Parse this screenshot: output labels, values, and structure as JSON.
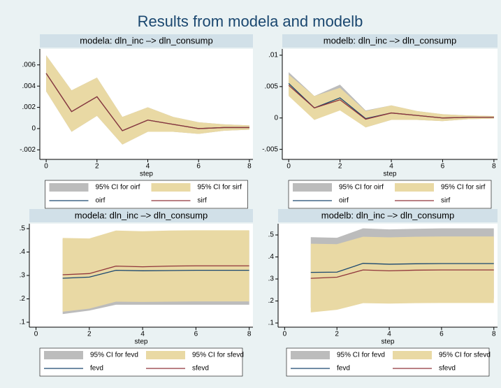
{
  "title": "Results from modela and modelb",
  "chart_data": [
    {
      "type": "line",
      "title": "modela: dln_inc –> dln_consump",
      "xlabel": "step",
      "x": [
        0,
        1,
        2,
        3,
        4,
        5,
        6,
        7,
        8
      ],
      "xlim": [
        -0.25,
        8.14
      ],
      "ylim": [
        -0.0029,
        0.0075
      ],
      "xticks": [
        0,
        2,
        4,
        6,
        8
      ],
      "yticks": [
        {
          "value": -0.002,
          "label": "-.002"
        },
        0,
        {
          "value": 0.002,
          "label": ".002"
        },
        {
          "value": 0.004,
          "label": ".004"
        },
        {
          "value": 0.006,
          "label": ".006"
        }
      ],
      "bands": [
        {
          "name": "95% CI for oirf",
          "color": "#bcbcbc",
          "lower": [
            0.0035,
            -0.0003,
            0.0012,
            -0.0015,
            -0.0003,
            -0.0003,
            -0.0005,
            -0.0002,
            -0.0001
          ],
          "upper": [
            0.0069,
            0.0036,
            0.0048,
            0.0011,
            0.002,
            0.0011,
            0.0006,
            0.0004,
            0.0003
          ]
        },
        {
          "name": "95% CI for sirf",
          "color": "#e9d9a4",
          "lower": [
            0.0035,
            -0.0003,
            0.0012,
            -0.0015,
            -0.0003,
            -0.0003,
            -0.0005,
            -0.0002,
            -0.0001
          ],
          "upper": [
            0.0069,
            0.0036,
            0.0048,
            0.0011,
            0.002,
            0.0011,
            0.0006,
            0.0004,
            0.0003
          ]
        }
      ],
      "series": [
        {
          "name": "oirf",
          "color": "#1a476f",
          "values": [
            0.0052,
            0.0016,
            0.003,
            -0.0002,
            0.0008,
            0.0004,
            0.0,
            0.0001,
            0.0001
          ]
        },
        {
          "name": "sirf",
          "color": "#90353b",
          "values": [
            0.0052,
            0.0016,
            0.003,
            -0.0002,
            0.0008,
            0.0004,
            0.0,
            0.0001,
            0.0001
          ]
        }
      ]
    },
    {
      "type": "line",
      "title": "modelb: dln_inc –> dln_consump",
      "xlabel": "step",
      "x": [
        0,
        1,
        2,
        3,
        4,
        5,
        6,
        7,
        8
      ],
      "xlim": [
        -0.25,
        8.14
      ],
      "ylim": [
        -0.0066,
        0.011
      ],
      "xticks": [
        0,
        2,
        4,
        6,
        8
      ],
      "yticks": [
        {
          "value": -0.005,
          "label": "-.005"
        },
        0,
        {
          "value": 0.005,
          "label": ".005"
        },
        {
          "value": 0.01,
          "label": ".01"
        }
      ],
      "bands": [
        {
          "name": "95% CI for oirf",
          "color": "#bcbcbc",
          "lower": [
            0.0037,
            -0.0003,
            0.0013,
            -0.0015,
            -0.0003,
            -0.0003,
            -0.0005,
            -0.0002,
            -0.0001
          ],
          "upper": [
            0.0073,
            0.0035,
            0.0053,
            0.0012,
            0.002,
            0.0011,
            0.0006,
            0.0004,
            0.0003
          ]
        },
        {
          "name": "95% CI for sirf",
          "color": "#e9d9a4",
          "lower": [
            0.0035,
            -0.0003,
            0.0012,
            -0.0015,
            -0.0003,
            -0.0003,
            -0.0005,
            -0.0002,
            -0.0001
          ],
          "upper": [
            0.0069,
            0.0035,
            0.0048,
            0.0011,
            0.002,
            0.0011,
            0.0006,
            0.0004,
            0.0003
          ]
        }
      ],
      "series": [
        {
          "name": "oirf",
          "color": "#1a476f",
          "values": [
            0.0055,
            0.0016,
            0.0032,
            -0.0001,
            0.0008,
            0.0004,
            0.0,
            0.0001,
            0.0001
          ]
        },
        {
          "name": "sirf",
          "color": "#90353b",
          "values": [
            0.0052,
            0.0016,
            0.0029,
            -0.0002,
            0.0008,
            0.0004,
            0.0,
            0.0001,
            0.0001
          ]
        }
      ]
    },
    {
      "type": "line",
      "title": "modela: dln_inc –> dln_consump",
      "xlabel": "step",
      "x": [
        1,
        2,
        3,
        4,
        5,
        6,
        7,
        8
      ],
      "xlim": [
        -0.25,
        8.14
      ],
      "ylim": [
        0.079,
        0.521
      ],
      "xticks": [
        0,
        2,
        4,
        6,
        8
      ],
      "yticks": [
        {
          "value": 0.1,
          "label": ".1"
        },
        {
          "value": 0.2,
          "label": ".2"
        },
        {
          "value": 0.3,
          "label": ".3"
        },
        {
          "value": 0.4,
          "label": ".4"
        },
        {
          "value": 0.5,
          "label": ".5"
        }
      ],
      "bands": [
        {
          "name": "95% CI for fevd",
          "color": "#bcbcbc",
          "lower": [
            0.135,
            0.15,
            0.175,
            0.175,
            0.175,
            0.175,
            0.175,
            0.175
          ],
          "upper": [
            0.455,
            0.453,
            0.49,
            0.487,
            0.49,
            0.491,
            0.491,
            0.491
          ]
        },
        {
          "name": "95% CI for sfevd",
          "color": "#e9d9a4",
          "lower": [
            0.145,
            0.158,
            0.188,
            0.187,
            0.188,
            0.189,
            0.189,
            0.189
          ],
          "upper": [
            0.46,
            0.458,
            0.492,
            0.489,
            0.492,
            0.493,
            0.493,
            0.493
          ]
        }
      ],
      "series": [
        {
          "name": "fevd",
          "color": "#1a476f",
          "values": [
            0.288,
            0.293,
            0.322,
            0.32,
            0.321,
            0.322,
            0.322,
            0.322
          ]
        },
        {
          "name": "sfevd",
          "color": "#90353b",
          "values": [
            0.303,
            0.308,
            0.34,
            0.337,
            0.34,
            0.341,
            0.341,
            0.341
          ]
        }
      ]
    },
    {
      "type": "line",
      "title": "modelb: dln_inc –> dln_consump",
      "xlabel": "step",
      "x": [
        1,
        2,
        3,
        4,
        5,
        6,
        7,
        8
      ],
      "xlim": [
        -0.25,
        8.14
      ],
      "ylim": [
        0.081,
        0.551
      ],
      "xticks": [
        0,
        2,
        4,
        6,
        8
      ],
      "yticks": [
        {
          "value": 0.1,
          "label": ".1"
        },
        {
          "value": 0.2,
          "label": ".2"
        },
        {
          "value": 0.3,
          "label": ".3"
        },
        {
          "value": 0.4,
          "label": ".4"
        },
        {
          "value": 0.5,
          "label": ".5"
        }
      ],
      "bands": [
        {
          "name": "95% CI for fevd",
          "color": "#bcbcbc",
          "lower": [
            0.17,
            0.175,
            0.21,
            0.208,
            0.21,
            0.211,
            0.211,
            0.211
          ],
          "upper": [
            0.49,
            0.487,
            0.53,
            0.525,
            0.528,
            0.53,
            0.53,
            0.53
          ]
        },
        {
          "name": "95% CI for sfevd",
          "color": "#e9d9a4",
          "lower": [
            0.148,
            0.16,
            0.19,
            0.188,
            0.19,
            0.191,
            0.191,
            0.191
          ],
          "upper": [
            0.46,
            0.458,
            0.492,
            0.489,
            0.492,
            0.493,
            0.493,
            0.493
          ]
        }
      ],
      "series": [
        {
          "name": "fevd",
          "color": "#1a476f",
          "values": [
            0.33,
            0.331,
            0.371,
            0.367,
            0.369,
            0.37,
            0.37,
            0.37
          ]
        },
        {
          "name": "sfevd",
          "color": "#90353b",
          "values": [
            0.303,
            0.308,
            0.341,
            0.337,
            0.34,
            0.341,
            0.341,
            0.341
          ]
        }
      ]
    }
  ]
}
